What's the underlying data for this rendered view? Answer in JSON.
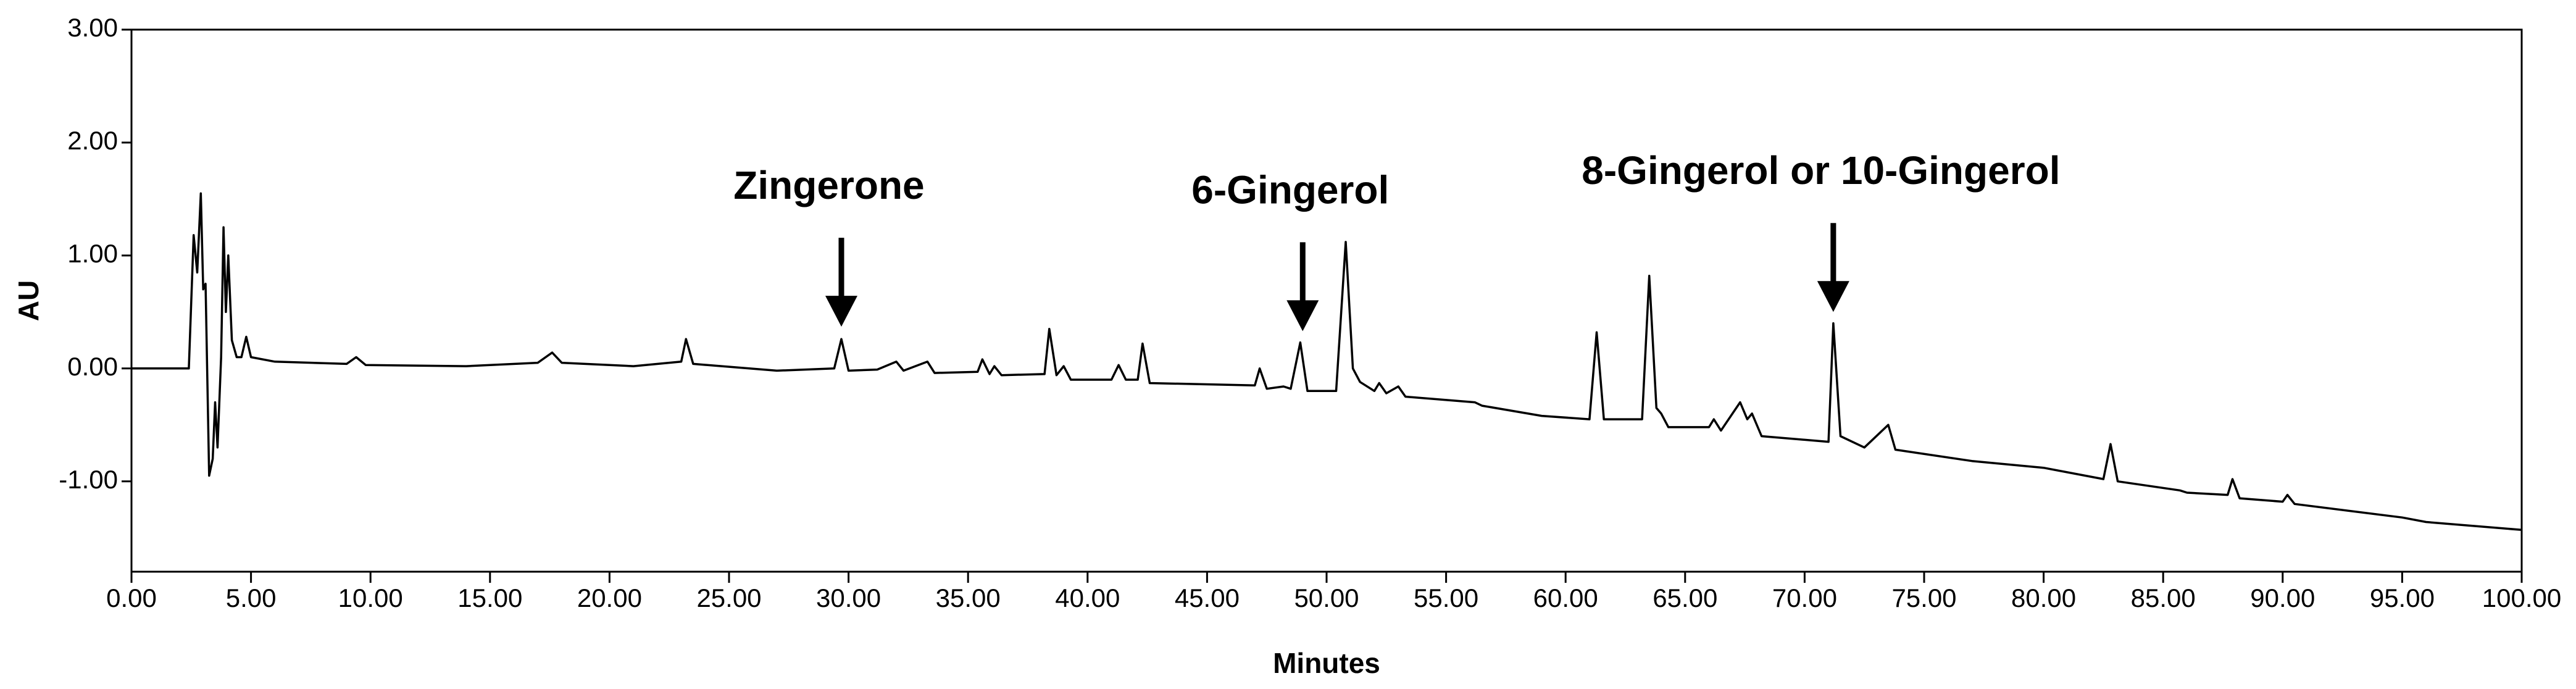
{
  "chart_data": {
    "type": "line",
    "x_label": "Minutes",
    "y_label": "AU",
    "xlim": [
      0,
      100
    ],
    "ylim": [
      -1.8,
      3
    ],
    "xticks": [
      {
        "value": 0,
        "label": "0.00"
      },
      {
        "value": 5,
        "label": "5.00"
      },
      {
        "value": 10,
        "label": "10.00"
      },
      {
        "value": 15,
        "label": "15.00"
      },
      {
        "value": 20,
        "label": "20.00"
      },
      {
        "value": 25,
        "label": "25.00"
      },
      {
        "value": 30,
        "label": "30.00"
      },
      {
        "value": 35,
        "label": "35.00"
      },
      {
        "value": 40,
        "label": "40.00"
      },
      {
        "value": 45,
        "label": "45.00"
      },
      {
        "value": 50,
        "label": "50.00"
      },
      {
        "value": 55,
        "label": "55.00"
      },
      {
        "value": 60,
        "label": "60.00"
      },
      {
        "value": 65,
        "label": "65.00"
      },
      {
        "value": 70,
        "label": "70.00"
      },
      {
        "value": 75,
        "label": "75.00"
      },
      {
        "value": 80,
        "label": "80.00"
      },
      {
        "value": 85,
        "label": "85.00"
      },
      {
        "value": 90,
        "label": "90.00"
      },
      {
        "value": 95,
        "label": "95.00"
      },
      {
        "value": 100,
        "label": "100.00"
      }
    ],
    "yticks": [
      {
        "value": -1,
        "label": "-1.00"
      },
      {
        "value": 0,
        "label": "0.00"
      },
      {
        "value": 1,
        "label": "1.00"
      },
      {
        "value": 2,
        "label": "2.00"
      },
      {
        "value": 3,
        "label": "3.00"
      }
    ],
    "annotations": [
      {
        "text": "Zingerone",
        "x": 29.7,
        "y": 0.37
      },
      {
        "text": "6-Gingerol",
        "x": 49,
        "y": 0.33
      },
      {
        "text": "8-Gingerol or 10-Gingerol",
        "x": 71.2,
        "y": 0.5
      }
    ],
    "x": [
      0,
      2.4,
      2.6,
      2.75,
      2.9,
      3.0,
      3.1,
      3.25,
      3.4,
      3.5,
      3.6,
      3.75,
      3.85,
      3.95,
      4.05,
      4.2,
      4.4,
      4.6,
      4.8,
      5.0,
      6,
      9,
      9.4,
      9.8,
      14,
      17,
      17.6,
      18,
      21,
      23,
      23.2,
      23.5,
      27,
      29.4,
      29.7,
      30.0,
      31.2,
      32,
      32.3,
      33.3,
      33.6,
      35.4,
      35.6,
      35.9,
      36.1,
      36.4,
      38.2,
      38.4,
      38.7,
      39,
      39.3,
      41,
      41.3,
      41.6,
      42.1,
      42.3,
      42.6,
      47,
      47.2,
      47.5,
      48.2,
      48.5,
      48.9,
      49.2,
      50.4,
      50.8,
      51.1,
      51.4,
      52,
      52.2,
      52.5,
      53,
      53.3,
      56.2,
      56.5,
      59,
      61,
      61.3,
      61.6,
      63.2,
      63.5,
      63.8,
      64.0,
      64.3,
      66,
      66.2,
      66.5,
      67.3,
      67.6,
      67.8,
      68.2,
      71.0,
      71.2,
      71.5,
      72.5,
      73.5,
      73.8,
      77,
      80,
      82.5,
      82.8,
      83.1,
      85.7,
      86,
      87.7,
      87.9,
      88.2,
      90,
      90.2,
      90.5,
      95,
      96,
      100
    ],
    "series": [
      {
        "color": "#000000",
        "values": [
          0,
          0,
          1.18,
          0.85,
          1.55,
          0.7,
          0.75,
          -0.95,
          -0.8,
          -0.3,
          -0.7,
          0.1,
          1.25,
          0.5,
          1.0,
          0.25,
          0.1,
          0.1,
          0.28,
          0.1,
          0.06,
          0.04,
          0.1,
          0.03,
          0.02,
          0.05,
          0.14,
          0.05,
          0.02,
          0.06,
          0.26,
          0.04,
          -0.02,
          0.0,
          0.26,
          -0.02,
          -0.01,
          0.06,
          -0.02,
          0.06,
          -0.04,
          -0.03,
          0.08,
          -0.05,
          0.02,
          -0.06,
          -0.05,
          0.35,
          -0.06,
          0.02,
          -0.1,
          -0.1,
          0.03,
          -0.1,
          -0.1,
          0.22,
          -0.13,
          -0.15,
          0.0,
          -0.18,
          -0.16,
          -0.18,
          0.23,
          -0.2,
          -0.2,
          1.12,
          0.0,
          -0.12,
          -0.2,
          -0.13,
          -0.22,
          -0.16,
          -0.25,
          -0.3,
          -0.33,
          -0.42,
          -0.45,
          0.32,
          -0.45,
          -0.45,
          0.82,
          -0.35,
          -0.4,
          -0.52,
          -0.52,
          -0.45,
          -0.55,
          -0.3,
          -0.45,
          -0.4,
          -0.6,
          -0.65,
          0.4,
          -0.6,
          -0.7,
          -0.5,
          -0.72,
          -0.82,
          -0.88,
          -0.98,
          -0.67,
          -1.0,
          -1.08,
          -1.1,
          -1.12,
          -0.98,
          -1.15,
          -1.18,
          -1.12,
          -1.2,
          -1.32,
          -1.36,
          -1.43
        ]
      }
    ]
  }
}
